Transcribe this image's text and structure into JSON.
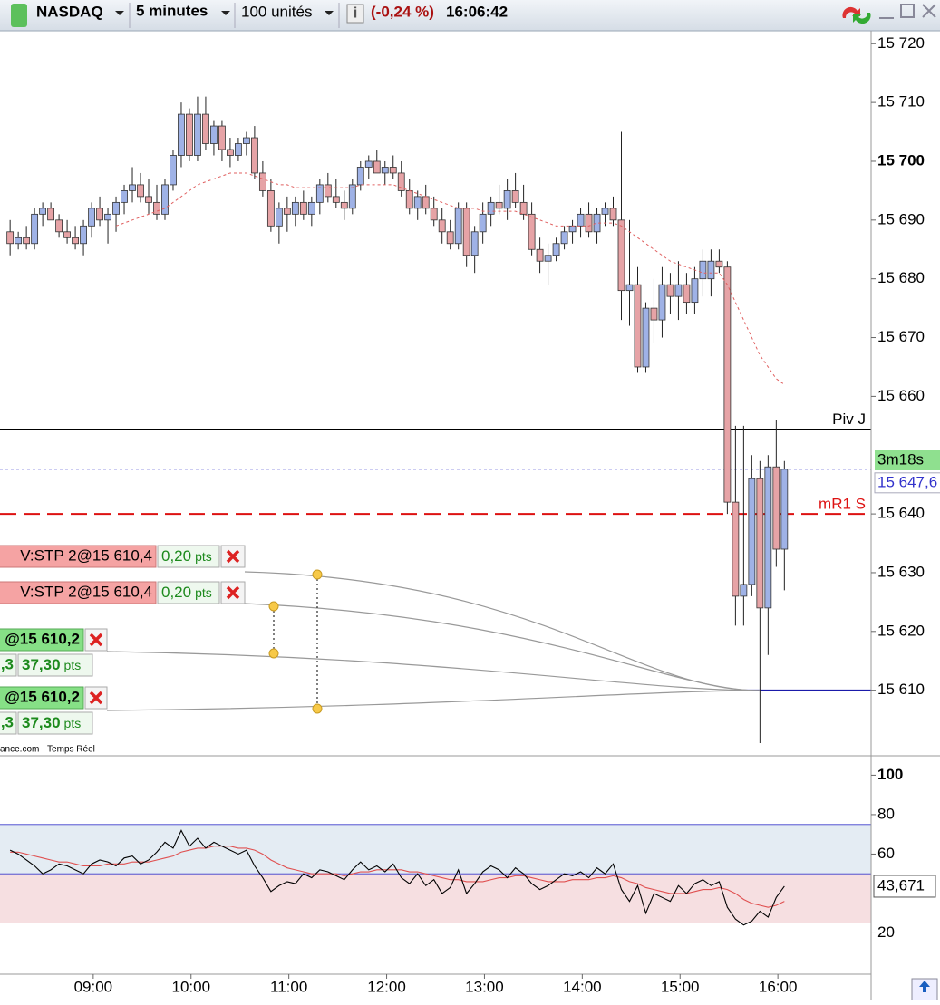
{
  "toolbar": {
    "instrument": "NASDAQ",
    "period": "5 minutes",
    "size": "100 unités",
    "change": "(-0,24 %)",
    "time": "16:06:42"
  },
  "orders": [
    {
      "text": "V:STP 2@15 610,4",
      "points": "0,20",
      "unit": "pts"
    },
    {
      "text": "V:STP 2@15 610,4",
      "points": "0,20",
      "unit": "pts"
    },
    {
      "text": "@15 610,2",
      "qty": ",3",
      "points": "37,30",
      "unit": "pts"
    },
    {
      "text": "@15 610,2",
      "qty": ",3",
      "points": "37,30",
      "unit": "pts"
    }
  ],
  "footer": "ance.com - Temps Réel",
  "chart_data": [
    {
      "type": "candlestick",
      "up_color": "#9fb2e6",
      "down_color": "#e6a3a6",
      "x": [
        489,
        494,
        499,
        504,
        509,
        514,
        519,
        524,
        529,
        534,
        539,
        544,
        549,
        554,
        559,
        564,
        569,
        574,
        579,
        584,
        589,
        594,
        599,
        604,
        609,
        614,
        619,
        624,
        629,
        634,
        639,
        644,
        649,
        654,
        659,
        664,
        669,
        674,
        679,
        684,
        689,
        694,
        699,
        704,
        709,
        714,
        719,
        724,
        729,
        734,
        739,
        744,
        749,
        754,
        759,
        764,
        769,
        774,
        779,
        784,
        789,
        794,
        799,
        804,
        809,
        814,
        819,
        824,
        829,
        834,
        839,
        844,
        849,
        854,
        859,
        864,
        869,
        874,
        879,
        884,
        889,
        894,
        899,
        904,
        909,
        914,
        919,
        924,
        929,
        934,
        939,
        944,
        949,
        954,
        959,
        964
      ],
      "ohlc": [
        [
          15688,
          15690,
          15684,
          15686
        ],
        [
          15686,
          15688,
          15685,
          15687
        ],
        [
          15687,
          15689,
          15685,
          15686
        ],
        [
          15686,
          15692,
          15685,
          15691
        ],
        [
          15691,
          15693,
          15689,
          15692
        ],
        [
          15692,
          15693,
          15690,
          15690
        ],
        [
          15690,
          15691,
          15687,
          15688
        ],
        [
          15688,
          15690,
          15686,
          15687
        ],
        [
          15687,
          15689,
          15685,
          15686
        ],
        [
          15686,
          15690,
          15684,
          15689
        ],
        [
          15689,
          15693,
          15687,
          15692
        ],
        [
          15692,
          15694,
          15689,
          15690
        ],
        [
          15690,
          15692,
          15686,
          15691
        ],
        [
          15691,
          15694,
          15688,
          15693
        ],
        [
          15693,
          15696,
          15691,
          15695
        ],
        [
          15695,
          15699,
          15693,
          15696
        ],
        [
          15696,
          15698,
          15693,
          15694
        ],
        [
          15694,
          15697,
          15691,
          15693
        ],
        [
          15693,
          15696,
          15690,
          15691
        ],
        [
          15691,
          15697,
          15690,
          15696
        ],
        [
          15696,
          15702,
          15695,
          15701
        ],
        [
          15701,
          15710,
          15699,
          15708
        ],
        [
          15708,
          15709,
          15700,
          15701
        ],
        [
          15701,
          15711,
          15700,
          15708
        ],
        [
          15708,
          15711,
          15702,
          15703
        ],
        [
          15703,
          15707,
          15701,
          15706
        ],
        [
          15706,
          15707,
          15700,
          15702
        ],
        [
          15702,
          15704,
          15699,
          15701
        ],
        [
          15701,
          15704,
          15700,
          15703
        ],
        [
          15703,
          15705,
          15701,
          15704
        ],
        [
          15704,
          15706,
          15697,
          15698
        ],
        [
          15698,
          15700,
          15694,
          15695
        ],
        [
          15695,
          15697,
          15688,
          15689
        ],
        [
          15689,
          15693,
          15686,
          15692
        ],
        [
          15692,
          15694,
          15688,
          15691
        ],
        [
          15691,
          15694,
          15689,
          15693
        ],
        [
          15693,
          15695,
          15690,
          15691
        ],
        [
          15691,
          15694,
          15689,
          15693
        ],
        [
          15693,
          15697,
          15691,
          15696
        ],
        [
          15696,
          15698,
          15693,
          15694
        ],
        [
          15694,
          15697,
          15692,
          15693
        ],
        [
          15693,
          15695,
          15690,
          15692
        ],
        [
          15692,
          15697,
          15691,
          15696
        ],
        [
          15696,
          15700,
          15695,
          15699
        ],
        [
          15699,
          15701,
          15697,
          15700
        ],
        [
          15700,
          15702,
          15698,
          15698
        ],
        [
          15698,
          15700,
          15696,
          15699
        ],
        [
          15699,
          15701,
          15697,
          15698
        ],
        [
          15698,
          15700,
          15694,
          15695
        ],
        [
          15695,
          15697,
          15691,
          15692
        ],
        [
          15692,
          15695,
          15690,
          15694
        ],
        [
          15694,
          15696,
          15691,
          15692
        ],
        [
          15692,
          15694,
          15689,
          15690
        ],
        [
          15690,
          15692,
          15686,
          15688
        ],
        [
          15688,
          15690,
          15685,
          15686
        ],
        [
          15686,
          15693,
          15685,
          15692
        ],
        [
          15692,
          15693,
          15682,
          15684
        ],
        [
          15684,
          15689,
          15681,
          15688
        ],
        [
          15688,
          15693,
          15686,
          15691
        ],
        [
          15691,
          15694,
          15689,
          15693
        ],
        [
          15693,
          15696,
          15691,
          15692
        ],
        [
          15692,
          15697,
          15690,
          15695
        ],
        [
          15695,
          15698,
          15692,
          15693
        ],
        [
          15693,
          15696,
          15690,
          15691
        ],
        [
          15691,
          15693,
          15684,
          15685
        ],
        [
          15685,
          15687,
          15681,
          15683
        ],
        [
          15683,
          15686,
          15679,
          15684
        ],
        [
          15684,
          15687,
          15683,
          15686
        ],
        [
          15686,
          15689,
          15685,
          15688
        ],
        [
          15688,
          15690,
          15686,
          15689
        ],
        [
          15689,
          15692,
          15687,
          15691
        ],
        [
          15691,
          15693,
          15687,
          15688
        ],
        [
          15688,
          15692,
          15686,
          15691
        ],
        [
          15691,
          15693,
          15689,
          15692
        ],
        [
          15692,
          15694,
          15689,
          15690
        ],
        [
          15690,
          15705,
          15673,
          15678
        ],
        [
          15678,
          15690,
          15672,
          15679
        ],
        [
          15679,
          15682,
          15664,
          15665
        ],
        [
          15665,
          15676,
          15664,
          15675
        ],
        [
          15675,
          15680,
          15669,
          15673
        ],
        [
          15673,
          15682,
          15670,
          15679
        ],
        [
          15679,
          15681,
          15674,
          15677
        ],
        [
          15677,
          15683,
          15673,
          15679
        ],
        [
          15679,
          15681,
          15674,
          15676
        ],
        [
          15676,
          15682,
          15674,
          15680
        ],
        [
          15680,
          15685,
          15677,
          15683
        ],
        [
          15680,
          15685,
          15677,
          15683
        ],
        [
          15683,
          15685,
          15681,
          15682
        ],
        [
          15682,
          15683,
          15640,
          15642
        ],
        [
          15642,
          15655,
          15621,
          15626
        ],
        [
          15626,
          15655,
          15621,
          15628
        ],
        [
          15628,
          15650,
          15626,
          15646
        ],
        [
          15646,
          15649,
          15601,
          15624
        ],
        [
          15624,
          15650,
          15616,
          15648
        ],
        [
          15648,
          15656,
          15631,
          15634
        ],
        [
          15634,
          15649,
          15627,
          15647.6
        ]
      ],
      "ma": {
        "color": "#e06060",
        "values": [
          null,
          null,
          null,
          null,
          null,
          null,
          null,
          null,
          null,
          null,
          null,
          null,
          null,
          15689,
          15689.5,
          15690,
          15690.5,
          15691,
          15691.5,
          15692,
          15693,
          15694,
          15695,
          15696,
          15696.5,
          15697,
          15697.5,
          15698,
          15698,
          15698,
          15697.5,
          15697,
          15696.5,
          15696,
          15696,
          15695.5,
          15695.5,
          15695.5,
          15695.5,
          15695.5,
          15695.5,
          15695.5,
          15695.5,
          15696,
          15696,
          15696,
          15696,
          15696,
          15695.5,
          15695,
          15694.5,
          15694,
          15693.5,
          15693,
          15692.5,
          15692,
          15692,
          15692,
          15691.5,
          15691.5,
          15691.5,
          15691.5,
          15691.5,
          15691,
          15690.5,
          15690,
          15689.5,
          15689,
          15689,
          15689,
          15689,
          15689,
          15689.5,
          15689.5,
          15689.5,
          15689,
          15688,
          15687,
          15686,
          15685,
          15684,
          15683,
          15682.5,
          15682,
          15681.5,
          15681,
          15681,
          15681,
          15679,
          15676,
          15673,
          15670,
          15667,
          15665,
          15663,
          15662
        ]
      },
      "xlim": [
        482.8,
        1017.2
      ],
      "ylim": [
        15599,
        15722.2
      ],
      "yticks": [
        {
          "value": 15720,
          "label": "15 720"
        },
        {
          "value": 15710,
          "label": "15 710"
        },
        {
          "value": 15700,
          "label": "15 700",
          "bold": true
        },
        {
          "value": 15690,
          "label": "15 690"
        },
        {
          "value": 15680,
          "label": "15 680"
        },
        {
          "value": 15670,
          "label": "15 670"
        },
        {
          "value": 15660,
          "label": "15 660"
        },
        {
          "value": 15640,
          "label": "15 640"
        },
        {
          "value": 15630,
          "label": "15 630"
        },
        {
          "value": 15620,
          "label": "15 620"
        },
        {
          "value": 15610,
          "label": "15 610"
        }
      ],
      "levels": [
        {
          "name": "Piv J",
          "value": 15654.4,
          "color": "#000000",
          "style": "solid"
        },
        {
          "name": "mR1 S",
          "value": 15640,
          "color": "#dd1111",
          "style": "dashed"
        },
        {
          "value": 15610,
          "color": "#1a1aaa",
          "style": "solid"
        }
      ],
      "last": {
        "value": 15647.6,
        "label": "15 647,6",
        "color": "#3333cc"
      },
      "countdown": "3m18s"
    },
    {
      "type": "line",
      "series": [
        {
          "color": "#000000",
          "values": [
            62,
            60,
            57,
            54,
            50,
            52,
            55,
            54,
            52,
            50,
            55,
            57,
            56,
            54,
            58,
            59,
            55,
            57,
            61,
            66,
            63,
            72,
            64,
            68,
            63,
            66,
            64,
            62,
            60,
            62,
            54,
            48,
            41,
            44,
            46,
            45,
            50,
            48,
            52,
            51,
            49,
            47,
            52,
            56,
            52,
            54,
            51,
            55,
            48,
            45,
            50,
            44,
            47,
            40,
            43,
            52,
            40,
            45,
            51,
            54,
            52,
            48,
            53,
            50,
            45,
            42,
            44,
            47,
            50,
            49,
            51,
            48,
            53,
            50,
            55,
            42,
            36,
            44,
            30,
            40,
            38,
            36,
            44,
            40,
            45,
            47,
            44,
            46,
            33,
            27,
            24,
            26,
            31,
            28,
            38,
            43.671
          ]
        },
        {
          "color": "#e05050",
          "values": [
            61,
            61,
            60,
            59,
            58,
            57,
            56,
            56,
            55,
            54,
            54,
            54,
            55,
            55,
            55,
            56,
            56,
            56,
            57,
            58,
            59,
            61,
            62,
            63,
            63,
            64,
            64,
            64,
            63,
            63,
            62,
            60,
            57,
            55,
            53,
            52,
            51,
            50,
            50,
            50,
            50,
            49,
            50,
            51,
            51,
            52,
            52,
            52,
            52,
            51,
            51,
            50,
            49,
            48,
            47,
            47,
            46,
            46,
            46,
            47,
            48,
            48,
            49,
            49,
            48,
            47,
            46,
            46,
            46,
            47,
            47,
            47,
            48,
            48,
            49,
            48,
            46,
            45,
            43,
            42,
            41,
            40,
            40,
            40,
            41,
            42,
            42,
            43,
            42,
            40,
            37,
            35,
            34,
            33,
            34,
            36
          ]
        }
      ],
      "bands": [
        25,
        50,
        75
      ],
      "band_colors": [
        "#f6dfe1",
        "#e4ecf3"
      ],
      "band_line": "#3a3acc",
      "ylim": [
        0,
        108
      ],
      "yticks": [
        20,
        60,
        80,
        {
          "value": 100,
          "label": "100",
          "bold": true
        }
      ],
      "xlim": [
        482.8,
        1017.2
      ],
      "xticks": [
        {
          "value": 540,
          "label": "09:00"
        },
        {
          "value": 600,
          "label": "10:00"
        },
        {
          "value": 660,
          "label": "11:00"
        },
        {
          "value": 720,
          "label": "12:00"
        },
        {
          "value": 780,
          "label": "13:00"
        },
        {
          "value": 840,
          "label": "14:00"
        },
        {
          "value": 900,
          "label": "15:00"
        },
        {
          "value": 960,
          "label": "16:00"
        }
      ],
      "last": {
        "value": 43.671,
        "label": "43,671"
      }
    }
  ]
}
